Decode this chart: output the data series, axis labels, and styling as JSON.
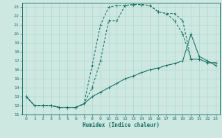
{
  "xlabel": "Humidex (Indice chaleur)",
  "bg_color": "#cce8e0",
  "line_color": "#1a7068",
  "grid_color": "#b0d4cc",
  "xlim": [
    -0.5,
    23.5
  ],
  "ylim": [
    11,
    23.5
  ],
  "xticks": [
    0,
    1,
    2,
    3,
    4,
    5,
    6,
    7,
    8,
    9,
    10,
    11,
    12,
    13,
    14,
    15,
    16,
    17,
    18,
    19,
    20,
    21,
    22,
    23
  ],
  "yticks": [
    11,
    12,
    13,
    14,
    15,
    16,
    17,
    18,
    19,
    20,
    21,
    22,
    23
  ],
  "line1_x": [
    0,
    1,
    2,
    3,
    4,
    5,
    6,
    7,
    8,
    9,
    10,
    11,
    12,
    13,
    14,
    15,
    16,
    17,
    18,
    19,
    20,
    21,
    22,
    23
  ],
  "line1_y": [
    13,
    12,
    12,
    12,
    11.8,
    11.8,
    11.8,
    12.2,
    16.5,
    21,
    23,
    23.2,
    23.2,
    23.3,
    23.3,
    23.2,
    22.5,
    22.3,
    22.3,
    21.5,
    17.2,
    17.2,
    16.8,
    16.8
  ],
  "line2_x": [
    0,
    1,
    2,
    3,
    4,
    5,
    6,
    7,
    8,
    9,
    10,
    11,
    12,
    13,
    14,
    15,
    16,
    17,
    18,
    19,
    20,
    21,
    22,
    23
  ],
  "line2_y": [
    13,
    12,
    12,
    12,
    11.8,
    11.8,
    11.8,
    12.2,
    14.0,
    17.0,
    21.5,
    21.5,
    23.2,
    23.3,
    23.3,
    23.2,
    22.5,
    22.3,
    21.5,
    20.0,
    17.2,
    17.2,
    16.8,
    16.8
  ],
  "line3_x": [
    0,
    1,
    2,
    3,
    4,
    5,
    6,
    7,
    8,
    9,
    10,
    11,
    12,
    13,
    14,
    15,
    16,
    17,
    18,
    19,
    20,
    21,
    22,
    23
  ],
  "line3_y": [
    13,
    12,
    12,
    12,
    11.8,
    11.8,
    11.8,
    12.2,
    13.0,
    13.5,
    14.0,
    14.5,
    15.0,
    15.3,
    15.7,
    16.0,
    16.2,
    16.5,
    16.7,
    17.0,
    20.0,
    17.5,
    17.0,
    16.5
  ]
}
